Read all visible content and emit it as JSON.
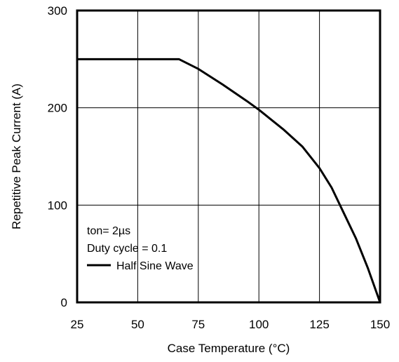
{
  "chart_data": {
    "type": "line",
    "title": "",
    "xlabel": "Case Temperature (°C)",
    "ylabel": "Repetitive Peak Current (A)",
    "xlim": [
      25,
      150
    ],
    "ylim": [
      0,
      300
    ],
    "x_ticks": [
      25,
      50,
      75,
      100,
      125,
      150
    ],
    "y_ticks": [
      0,
      100,
      200,
      300
    ],
    "x_tick_labels": [
      "25",
      "50",
      "75",
      "100",
      "125",
      "150"
    ],
    "y_tick_labels": [
      "0",
      "100",
      "200",
      "300"
    ],
    "grid": true,
    "annotations": [
      "ton= 2µs",
      "Duty cycle = 0.1"
    ],
    "series": [
      {
        "name": "Half Sine Wave",
        "color": "#000000",
        "x": [
          25,
          67,
          75,
          85,
          95,
          100,
          110,
          118,
          125,
          130,
          135,
          140,
          145,
          150
        ],
        "y": [
          250,
          250,
          240,
          224,
          207,
          198,
          178,
          160,
          138,
          118,
          92,
          66,
          35,
          0
        ]
      }
    ]
  }
}
